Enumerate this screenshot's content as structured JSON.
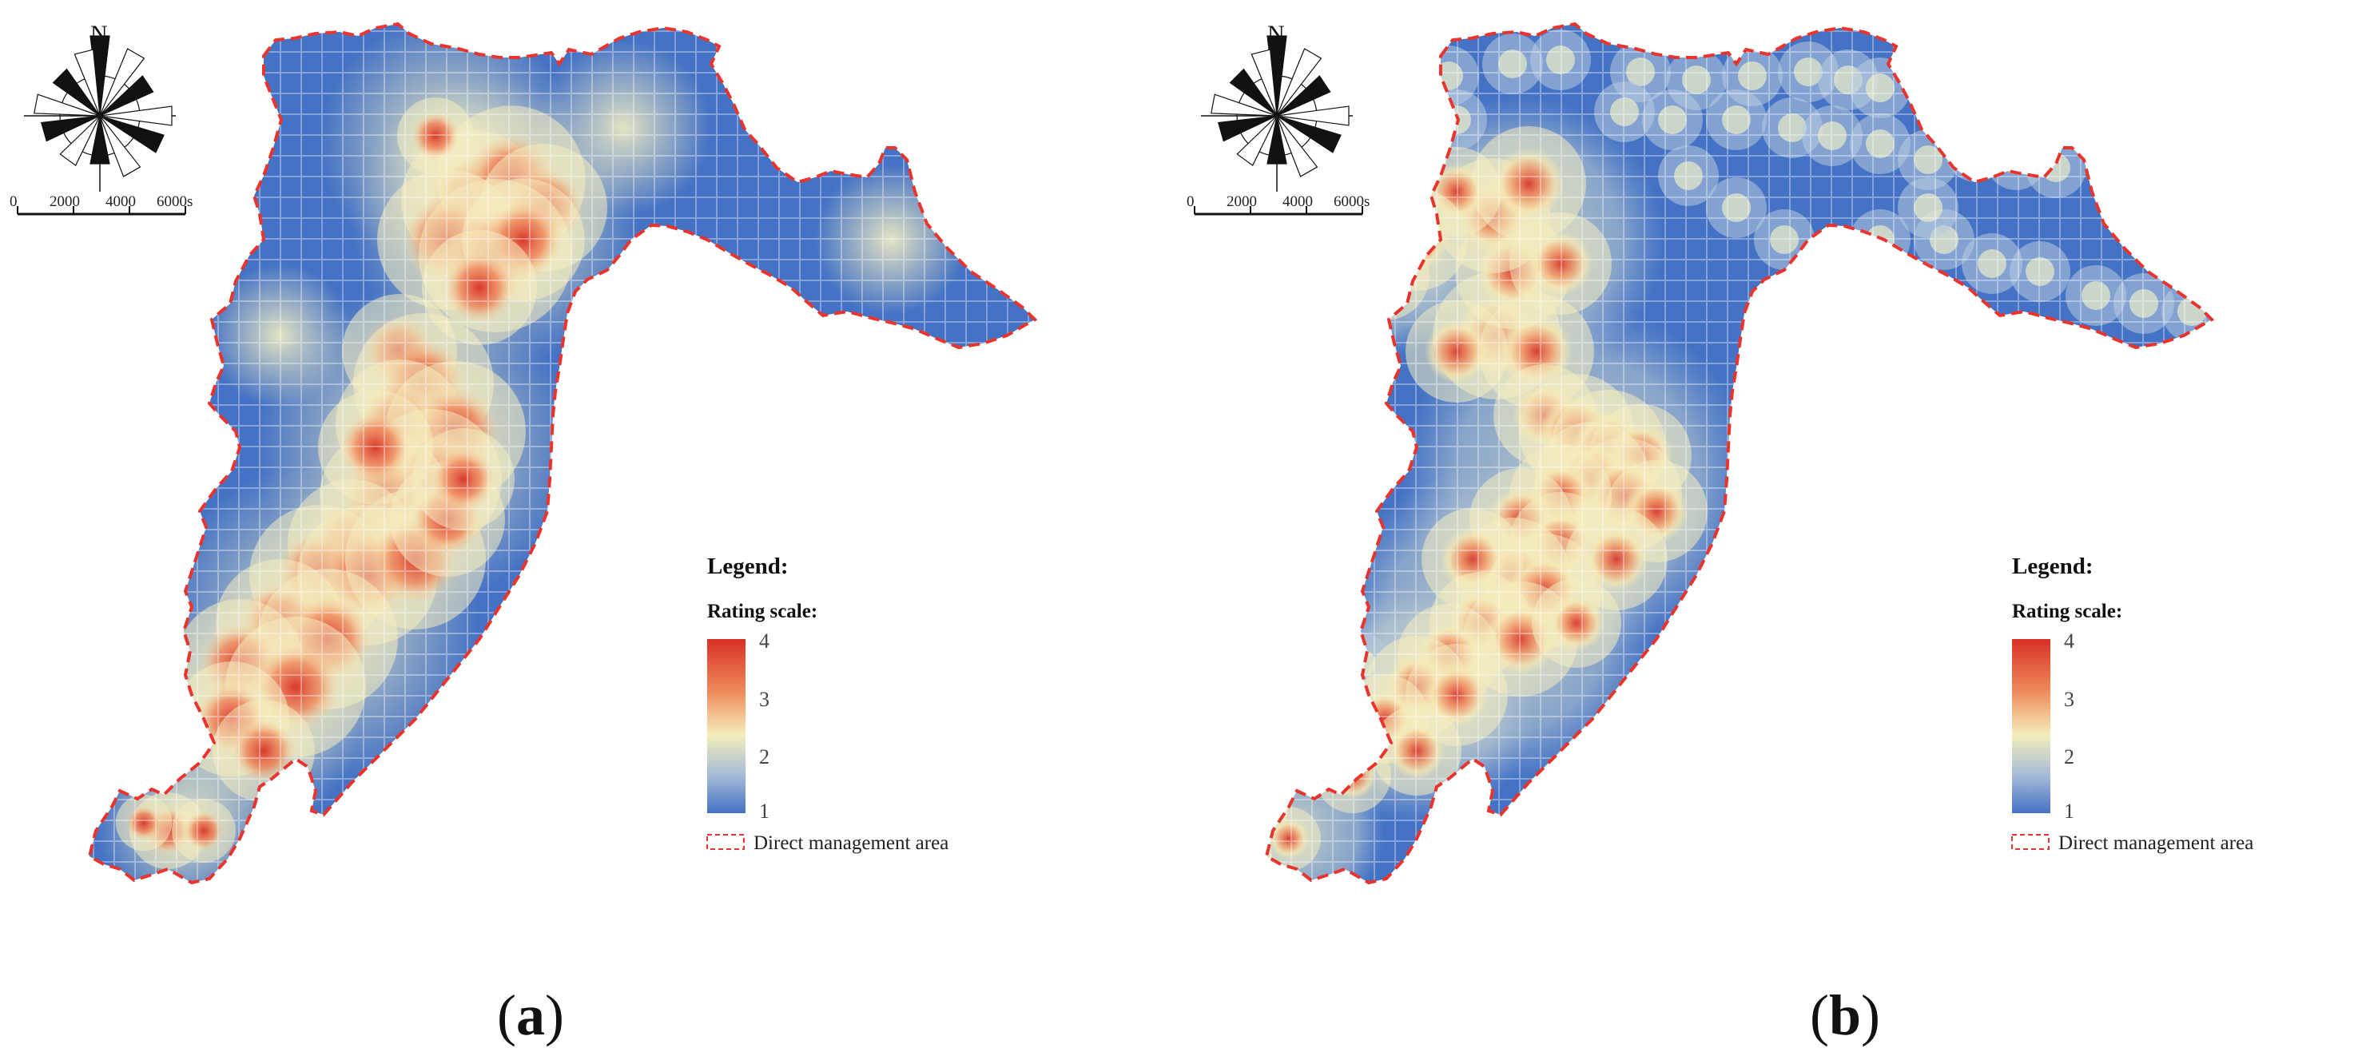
{
  "panels": [
    {
      "id": "a",
      "north_label": "N",
      "scale_labels": [
        "0",
        "2000",
        "4000",
        "6000s"
      ],
      "legend_title": "Legend:",
      "scale_title": "Rating scale:",
      "scale_ticks": [
        "4",
        "3",
        "2",
        "1"
      ],
      "boundary_label": "Direct management area",
      "caption_open": "(",
      "caption_letter": "a",
      "caption_close": ")"
    },
    {
      "id": "b",
      "north_label": "N",
      "scale_labels": [
        "0",
        "2000",
        "4000",
        "6000s"
      ],
      "legend_title": "Legend:",
      "scale_title": "Rating scale:",
      "scale_ticks": [
        "4",
        "3",
        "2",
        "1"
      ],
      "boundary_label": "Direct management area",
      "caption_open": "(",
      "caption_letter": "b",
      "caption_close": ")"
    }
  ],
  "colors": {
    "low": "#4472c4",
    "mid": "#f3eeba",
    "high": "#d73027",
    "boundary": "#e8342c"
  }
}
